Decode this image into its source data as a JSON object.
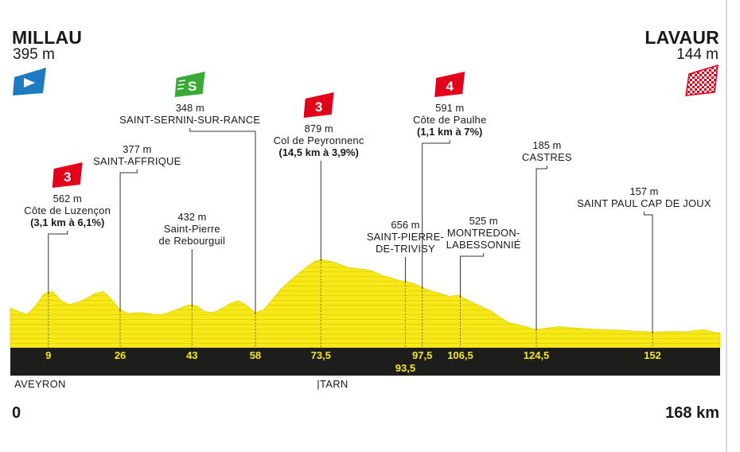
{
  "start": {
    "name": "MILLAU",
    "altitude": "395 m"
  },
  "finish": {
    "name": "LAVAUR",
    "altitude": "144 m"
  },
  "distance": {
    "start_label": "0",
    "end_label": "168 km"
  },
  "regions": [
    {
      "label": "AVEYRON",
      "km": 0
    },
    {
      "label": "|TARN",
      "km": 72
    }
  ],
  "colors": {
    "profile_fill": "#f7e81a",
    "axis_band": "#1d1d1b",
    "km_label": "#f7e81a",
    "climb_badge": "#e2001a",
    "sprint_badge": "#3aa935",
    "start_flag": "#1f7bc1",
    "leader_line": "#333333"
  },
  "chart_data": {
    "type": "area",
    "title": "",
    "xlabel": "",
    "ylabel": "",
    "xlim": [
      0,
      168
    ],
    "elevation_profile": {
      "km": [
        0,
        2,
        4,
        6,
        8,
        10,
        12,
        14,
        16,
        18,
        20,
        22,
        24,
        26,
        28,
        30,
        32,
        34,
        36,
        38,
        40,
        42,
        44,
        46,
        48,
        50,
        52,
        54,
        56,
        58,
        60,
        62,
        64,
        66,
        68,
        70,
        72,
        73.5,
        76,
        78,
        80,
        82,
        84,
        86,
        88,
        90,
        92,
        94,
        96,
        98,
        100,
        102,
        104,
        106,
        108,
        110,
        112,
        114,
        116,
        118,
        120,
        122,
        124,
        126,
        128,
        130,
        132,
        134,
        136,
        138,
        140,
        142,
        144,
        146,
        148,
        150,
        152,
        154,
        156,
        158,
        160,
        162,
        164,
        166,
        168
      ],
      "altitude_m": [
        395,
        360,
        330,
        420,
        540,
        562,
        470,
        430,
        455,
        490,
        540,
        560,
        480,
        377,
        340,
        350,
        345,
        330,
        330,
        360,
        390,
        425,
        420,
        360,
        350,
        390,
        440,
        470,
        420,
        348,
        380,
        480,
        580,
        660,
        730,
        800,
        860,
        879,
        860,
        830,
        800,
        790,
        780,
        760,
        720,
        700,
        670,
        656,
        630,
        591,
        560,
        540,
        510,
        525,
        480,
        440,
        400,
        360,
        300,
        250,
        230,
        210,
        185,
        190,
        200,
        210,
        200,
        195,
        190,
        185,
        180,
        178,
        175,
        170,
        165,
        160,
        157,
        158,
        160,
        162,
        158,
        170,
        180,
        160,
        144
      ]
    },
    "km_markers": [
      "9",
      "26",
      "43",
      "58",
      "73,5",
      "93,5",
      "97,5",
      "106,5",
      "124,5",
      "152"
    ],
    "km_marker_values": [
      9,
      26,
      43,
      58,
      73.5,
      93.5,
      97.5,
      106.5,
      124.5,
      152
    ],
    "waypoints": [
      {
        "km": 9,
        "altitude": "562 m",
        "name": "Côte de Luzençon",
        "detail": "(3,1 km à 6,1%)",
        "badge": "3",
        "badge_type": "climb",
        "label_km": 13.5
      },
      {
        "km": 26,
        "altitude": "377 m",
        "name": "SAINT-AFFRIQUE",
        "detail": "",
        "badge": "",
        "badge_type": "",
        "label_km": 30
      },
      {
        "km": 43,
        "altitude": "432 m",
        "name": "Saint-Pierre\nde Rebourguil",
        "detail": "",
        "badge": "",
        "badge_type": "",
        "label_km": 43
      },
      {
        "km": 58,
        "altitude": "348 m",
        "name": "SAINT-SERNIN-SUR-RANCE",
        "detail": "",
        "badge": "S",
        "badge_type": "sprint",
        "label_km": 42.5
      },
      {
        "km": 73.5,
        "altitude": "879 m",
        "name": "Col de Peyronnenc",
        "detail": "(14,5 km à 3,9%)",
        "badge": "3",
        "badge_type": "climb",
        "label_km": 73
      },
      {
        "km": 93.5,
        "altitude": "656 m",
        "name": "SAINT-PIERRE-\nDE-TRIVISY",
        "detail": "",
        "badge": "",
        "badge_type": "",
        "label_km": 93.5
      },
      {
        "km": 97.5,
        "altitude": "591 m",
        "name": "Côte de Paulhe",
        "detail": "(1,1 km à 7%)",
        "badge": "4",
        "badge_type": "climb",
        "label_km": 104
      },
      {
        "km": 106.5,
        "altitude": "525 m",
        "name": "MONTREDON-\nLABESSONNIÉ",
        "detail": "",
        "badge": "",
        "badge_type": "",
        "label_km": 112
      },
      {
        "km": 124.5,
        "altitude": "185 m",
        "name": "CASTRES",
        "detail": "",
        "badge": "",
        "badge_type": "",
        "label_km": 127
      },
      {
        "km": 152,
        "altitude": "157 m",
        "name": "SAINT PAUL CAP DE JOUX",
        "detail": "",
        "badge": "",
        "badge_type": "",
        "label_km": 150
      }
    ]
  }
}
